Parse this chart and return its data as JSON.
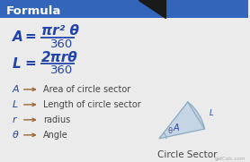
{
  "title": "Formula",
  "bg_color": "#ebebeb",
  "title_bg": "#3366bb",
  "title_color": "#ffffff",
  "formula_color": "#2244aa",
  "text_color": "#444444",
  "arrow_color": "#996633",
  "sector_color": "#aabbcc",
  "legend": [
    [
      "A",
      "Area of circle sector"
    ],
    [
      "L",
      "Length of circle sector"
    ],
    [
      "r",
      "radius"
    ],
    [
      "θ",
      "Angle"
    ]
  ],
  "sector_label": "Circle Sector",
  "title_fontsize": 9.5,
  "formula_fontsize": 11,
  "legend_sym_fontsize": 8,
  "legend_desc_fontsize": 7
}
